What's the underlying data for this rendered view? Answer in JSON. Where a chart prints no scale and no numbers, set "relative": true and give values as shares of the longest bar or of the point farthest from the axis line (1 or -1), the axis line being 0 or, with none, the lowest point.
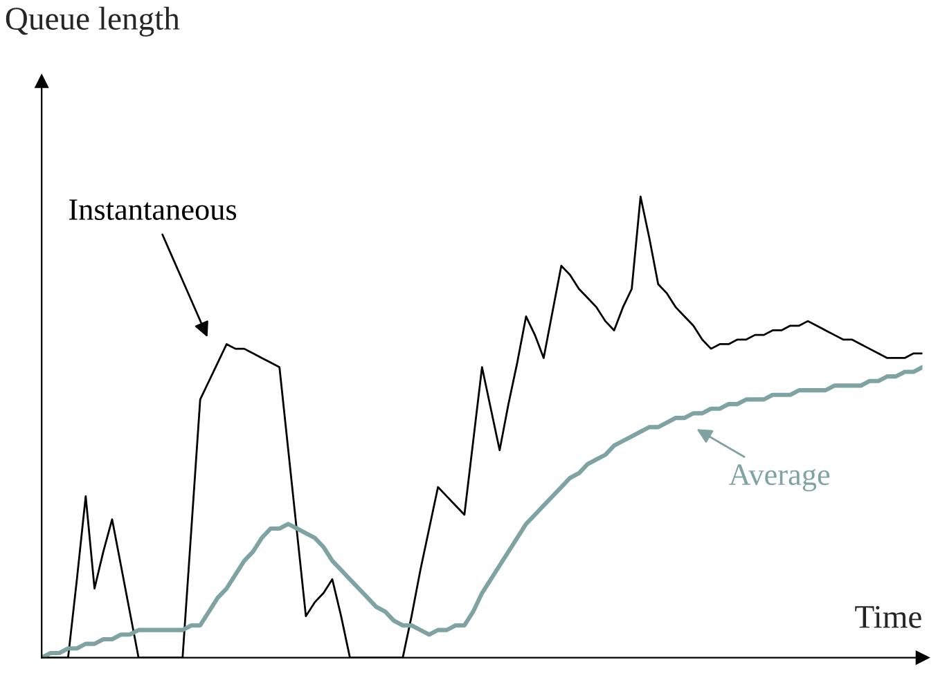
{
  "chart_data": {
    "type": "line",
    "relative": true,
    "xlabel": "Time",
    "ylabel": "Queue length",
    "categories": [
      null,
      null,
      null,
      null,
      null,
      null,
      null,
      null,
      null,
      null,
      null,
      null,
      null,
      null,
      null,
      null,
      null,
      null,
      null,
      null,
      null,
      null,
      null,
      null,
      null,
      null,
      null,
      null,
      null,
      null,
      null,
      null,
      null,
      null,
      null,
      null,
      null,
      null,
      null,
      null,
      null,
      null,
      null,
      null,
      null,
      null,
      null,
      null,
      null,
      null,
      null,
      null,
      null,
      null,
      null,
      null,
      null,
      null,
      null,
      null,
      null,
      null,
      null,
      null,
      null,
      null,
      null,
      null,
      null,
      null,
      null,
      null,
      null,
      null,
      null,
      null,
      null,
      null,
      null,
      null,
      null,
      null,
      null,
      null,
      null,
      null,
      null,
      null,
      null,
      null,
      null,
      null,
      null,
      null,
      null,
      null,
      null,
      null,
      null,
      null,
      null
    ],
    "series": [
      {
        "name": "Instantaneous",
        "color": "#000000",
        "values": [
          0,
          0,
          0,
          0,
          0.17,
          0.35,
          0.15,
          0.23,
          0.3,
          0.2,
          0.1,
          0,
          0,
          0,
          0,
          0,
          0,
          0.28,
          0.56,
          0.6,
          0.64,
          0.68,
          0.67,
          0.67,
          0.66,
          0.65,
          0.64,
          0.63,
          0.45,
          0.27,
          0.09,
          0.12,
          0.14,
          0.17,
          0.09,
          0,
          0,
          0,
          0,
          0,
          0,
          0,
          0.09,
          0.19,
          0.28,
          0.37,
          0.35,
          0.33,
          0.31,
          0.47,
          0.63,
          0.54,
          0.45,
          0.55,
          0.64,
          0.74,
          0.7,
          0.65,
          0.75,
          0.85,
          0.83,
          0.8,
          0.78,
          0.76,
          0.73,
          0.71,
          0.76,
          0.8,
          1,
          0.91,
          0.81,
          0.79,
          0.76,
          0.74,
          0.72,
          0.69,
          0.67,
          0.68,
          0.68,
          0.69,
          0.69,
          0.7,
          0.7,
          0.71,
          0.71,
          0.72,
          0.72,
          0.73,
          0.72,
          0.71,
          0.7,
          0.69,
          0.69,
          0.68,
          0.67,
          0.66,
          0.65,
          0.65,
          0.65,
          0.66,
          0.66
        ]
      },
      {
        "name": "Average",
        "color": "#7fa3a3",
        "values": [
          0,
          0.01,
          0.01,
          0.02,
          0.02,
          0.03,
          0.03,
          0.04,
          0.04,
          0.05,
          0.05,
          0.06,
          0.06,
          0.06,
          0.06,
          0.06,
          0.06,
          0.07,
          0.07,
          0.1,
          0.13,
          0.15,
          0.18,
          0.21,
          0.23,
          0.26,
          0.28,
          0.28,
          0.29,
          0.28,
          0.27,
          0.26,
          0.24,
          0.21,
          0.19,
          0.17,
          0.15,
          0.13,
          0.11,
          0.1,
          0.08,
          0.07,
          0.07,
          0.06,
          0.05,
          0.06,
          0.06,
          0.07,
          0.07,
          0.1,
          0.14,
          0.17,
          0.2,
          0.23,
          0.26,
          0.29,
          0.31,
          0.33,
          0.35,
          0.37,
          0.39,
          0.4,
          0.42,
          0.43,
          0.44,
          0.46,
          0.47,
          0.48,
          0.49,
          0.5,
          0.5,
          0.51,
          0.52,
          0.52,
          0.53,
          0.53,
          0.54,
          0.54,
          0.55,
          0.55,
          0.56,
          0.56,
          0.56,
          0.57,
          0.57,
          0.57,
          0.58,
          0.58,
          0.58,
          0.58,
          0.59,
          0.59,
          0.59,
          0.59,
          0.6,
          0.6,
          0.61,
          0.61,
          0.62,
          0.62,
          0.63
        ]
      }
    ]
  }
}
